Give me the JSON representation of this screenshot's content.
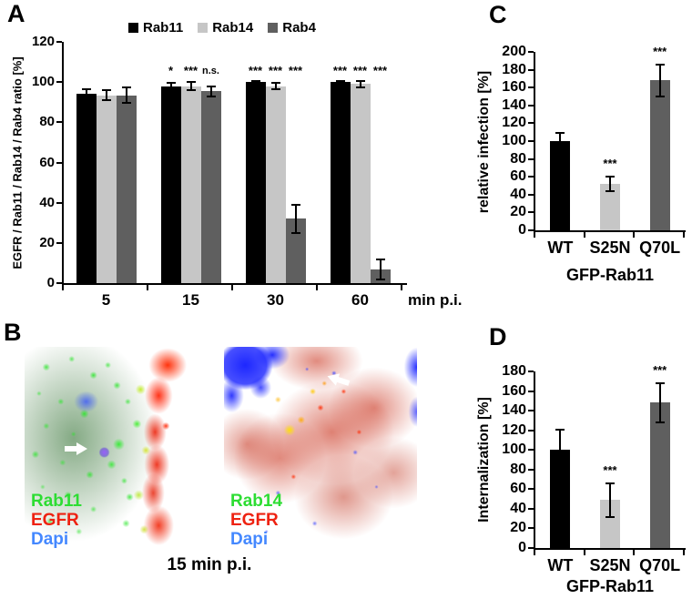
{
  "panels": {
    "a": "A",
    "b": "B",
    "c": "C",
    "d": "D"
  },
  "chart_data": [
    {
      "panel": "A",
      "type": "bar",
      "ylabel": "EGFR / Rab11 / Rab14 / Rab4 ratio [%]",
      "x_unit_label": "min p.i.",
      "ylim": [
        0,
        120
      ],
      "yticks": [
        0,
        20,
        40,
        60,
        80,
        100,
        120
      ],
      "categories": [
        "5",
        "15",
        "30",
        "60"
      ],
      "grid": false,
      "legend_position": "top",
      "series": [
        {
          "name": "Rab11",
          "color": "#000000",
          "values": [
            94,
            98,
            100,
            100
          ],
          "errors": [
            2.5,
            1.5,
            0.7,
            0.5
          ],
          "sig": [
            "",
            "*",
            "***",
            "***"
          ]
        },
        {
          "name": "Rab14",
          "color": "#c6c6c6",
          "values": [
            93.5,
            98,
            98,
            99
          ],
          "errors": [
            2.5,
            2,
            1.5,
            1.5
          ],
          "sig": [
            "",
            "***",
            "***",
            "***"
          ]
        },
        {
          "name": "Rab4",
          "color": "#5f5f5f",
          "values": [
            93.5,
            95.5,
            32,
            7
          ],
          "errors": [
            4,
            2.5,
            7,
            5
          ],
          "sig": [
            "",
            "n.s.",
            "***",
            "***"
          ]
        }
      ]
    },
    {
      "panel": "C",
      "type": "bar",
      "ylabel": "relative infection [%]",
      "xlabel": "GFP-Rab11",
      "ylim": [
        0,
        200
      ],
      "yticks": [
        0,
        20,
        40,
        60,
        80,
        100,
        120,
        140,
        160,
        180,
        200
      ],
      "categories": [
        "WT",
        "S25N",
        "Q70L"
      ],
      "values": [
        100,
        52,
        168
      ],
      "errors": [
        9,
        8,
        18
      ],
      "sig": [
        "",
        "***",
        "***"
      ],
      "bar_colors": [
        "#000000",
        "#c6c6c6",
        "#5f5f5f"
      ],
      "grid": false
    },
    {
      "panel": "D",
      "type": "bar",
      "ylabel": "Internalization [%]",
      "xlabel": "GFP-Rab11",
      "ylim": [
        0,
        180
      ],
      "yticks": [
        0,
        20,
        40,
        60,
        80,
        100,
        120,
        140,
        160,
        180
      ],
      "categories": [
        "WT",
        "S25N",
        "Q70L"
      ],
      "values": [
        100,
        49,
        148
      ],
      "errors": [
        21,
        17,
        20
      ],
      "sig": [
        "",
        "***",
        "***"
      ],
      "bar_colors": [
        "#000000",
        "#c6c6c6",
        "#5f5f5f"
      ],
      "grid": false
    }
  ],
  "panel_b": {
    "caption": "15 min p.i.",
    "images": [
      {
        "labels": [
          {
            "text": "Rab11",
            "color": "#2ddd33"
          },
          {
            "text": "EGFR",
            "color": "#ee2211"
          },
          {
            "text": "Dapi",
            "color": "#4488ff"
          }
        ]
      },
      {
        "labels": [
          {
            "text": "Rab14",
            "color": "#2ddd33"
          },
          {
            "text": "EGFR",
            "color": "#ee2211"
          },
          {
            "text": "Dapi",
            "color": "#4488ff"
          }
        ]
      }
    ]
  }
}
